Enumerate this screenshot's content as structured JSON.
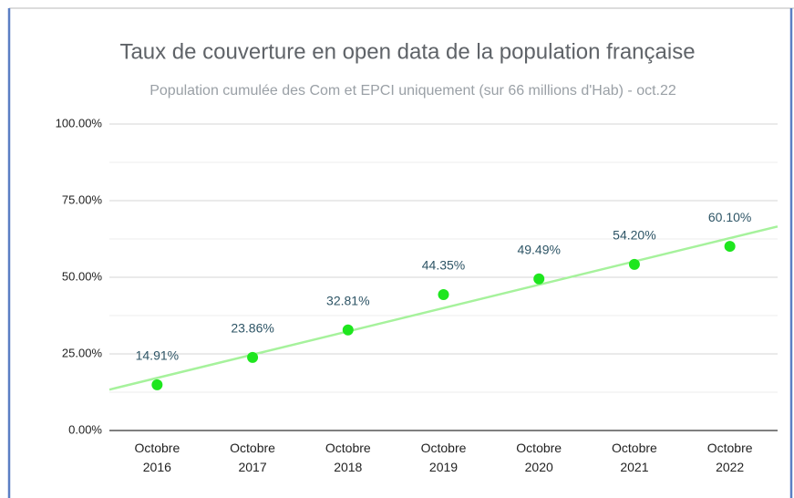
{
  "chart_data": {
    "type": "scatter",
    "title": "Taux de couverture en open data de la population française",
    "subtitle": "Population cumulée des Com et EPCI uniquement (sur 66 millions d'Hab) - oct.22",
    "categories": [
      "Octobre 2016",
      "Octobre 2017",
      "Octobre 2018",
      "Octobre 2019",
      "Octobre 2020",
      "Octobre 2021",
      "Octobre 2022"
    ],
    "values": [
      14.91,
      23.86,
      32.81,
      44.35,
      49.49,
      54.2,
      60.1
    ],
    "value_labels": [
      "14.91%",
      "23.86%",
      "32.81%",
      "44.35%",
      "49.49%",
      "54.20%",
      "60.10%"
    ],
    "color": "#1ee61e",
    "trendline": true,
    "trendline_color": "#a6f29c",
    "ylim": [
      0,
      100
    ],
    "yticks": [
      {
        "value": 0,
        "label": "0.00%"
      },
      {
        "value": 25,
        "label": "25.00%"
      },
      {
        "value": 50,
        "label": "50.00%"
      },
      {
        "value": 75,
        "label": "75.00%"
      },
      {
        "value": 100,
        "label": "100.00%"
      }
    ],
    "minor_yticks": [
      12.5,
      37.5,
      62.5,
      87.5
    ],
    "grid": true
  }
}
